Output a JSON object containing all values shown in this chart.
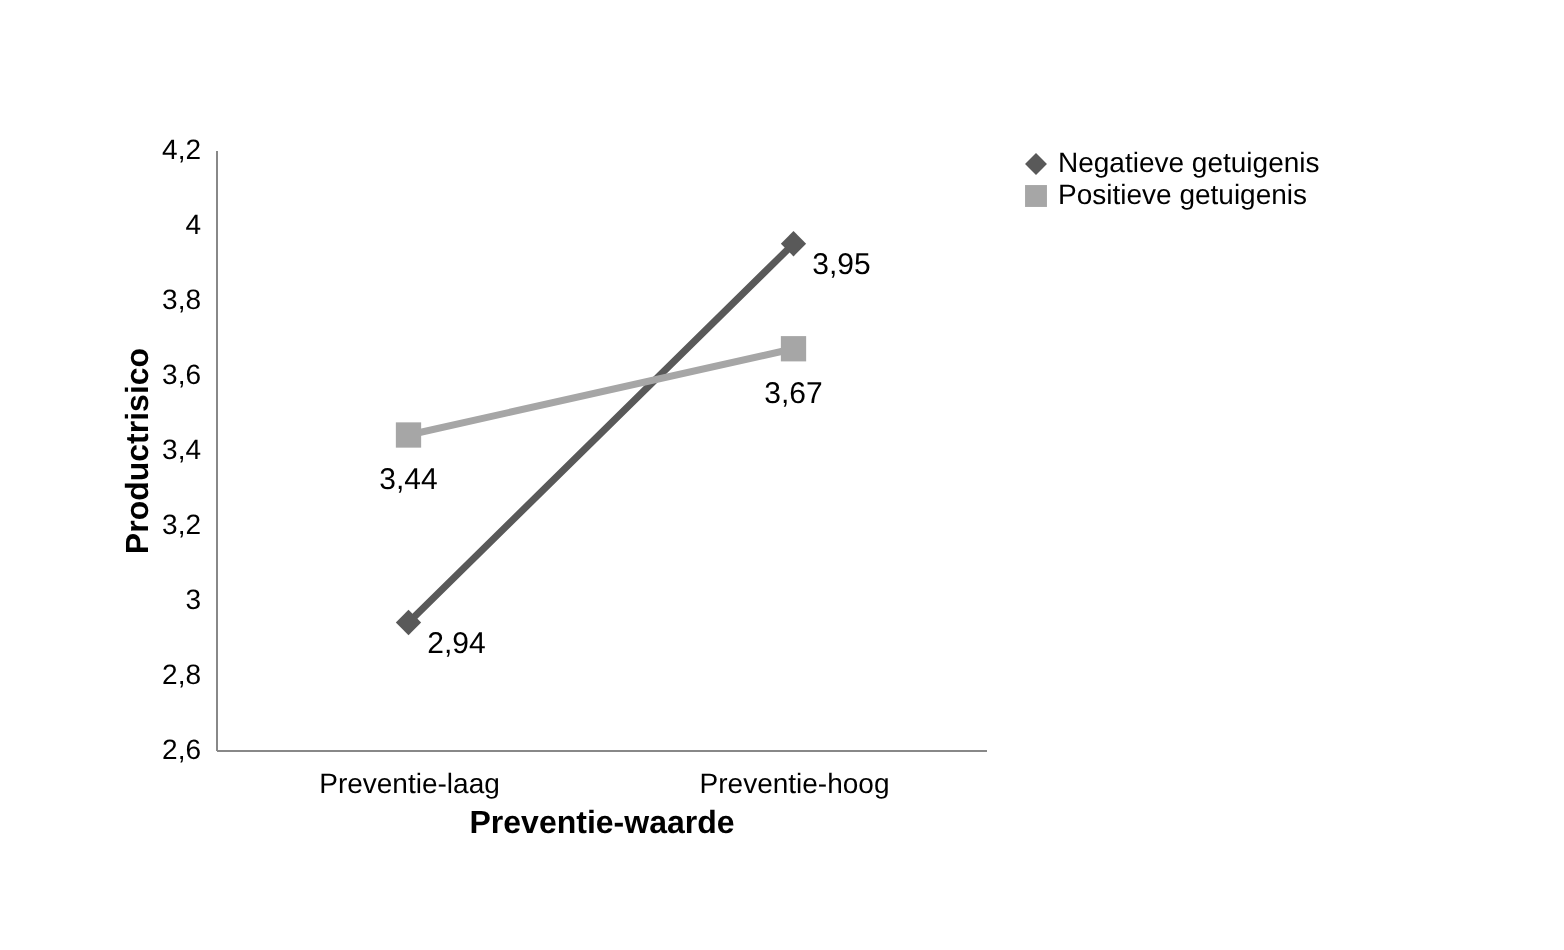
{
  "chart_data": {
    "type": "line",
    "xlabel": "Preventie-waarde",
    "ylabel": "Productrisico",
    "categories": [
      "Preventie-laag",
      "Preventie-hoog"
    ],
    "series": [
      {
        "name": "Negatieve getuigenis",
        "color": "#595959",
        "marker": "diamond",
        "values": [
          2.94,
          3.95
        ],
        "value_labels": [
          "2,94",
          "3,95"
        ]
      },
      {
        "name": "Positieve getuigenis",
        "color": "#a6a6a6",
        "marker": "square",
        "values": [
          3.44,
          3.67
        ],
        "value_labels": [
          "3,44",
          "3,67"
        ]
      }
    ],
    "ylim": [
      2.6,
      4.2
    ],
    "yticks": [
      {
        "value": 2.6,
        "label": "2,6"
      },
      {
        "value": 2.8,
        "label": "2,8"
      },
      {
        "value": 3,
        "label": "3"
      },
      {
        "value": 3.2,
        "label": "3,2"
      },
      {
        "value": 3.4,
        "label": "3,4"
      },
      {
        "value": 3.6,
        "label": "3,6"
      },
      {
        "value": 3.8,
        "label": "3,8"
      },
      {
        "value": 4,
        "label": "4"
      },
      {
        "value": 4.2,
        "label": "4,2"
      }
    ],
    "grid": false,
    "legend": "right",
    "line_style": "solid"
  }
}
